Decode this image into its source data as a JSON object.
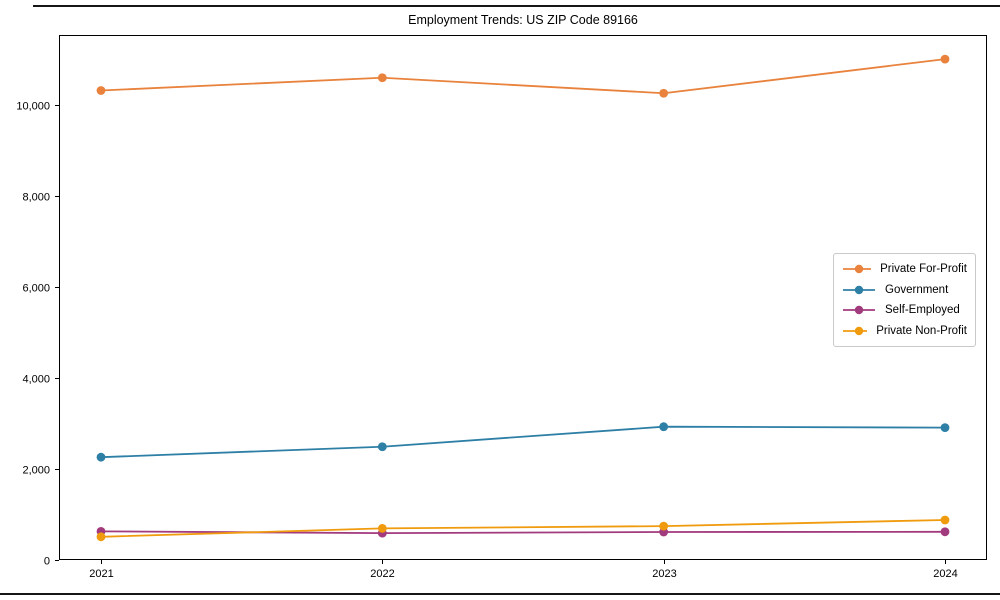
{
  "chart_data": {
    "type": "line",
    "title": "Employment Trends: US ZIP Code 89166",
    "categories": [
      "2021",
      "2022",
      "2023",
      "2024"
    ],
    "series": [
      {
        "name": "Private For-Profit",
        "color": "#E8823C",
        "values": [
          10320,
          10600,
          10260,
          11010
        ]
      },
      {
        "name": "Government",
        "color": "#2E7FA6",
        "values": [
          2260,
          2490,
          2930,
          2910
        ]
      },
      {
        "name": "Self-Employed",
        "color": "#A23A7E",
        "values": [
          630,
          590,
          615,
          620
        ]
      },
      {
        "name": "Private Non-Profit",
        "color": "#F09B0E",
        "values": [
          510,
          695,
          745,
          880
        ]
      }
    ],
    "xlabel": "",
    "ylabel": "",
    "ylim": [
      0,
      11540
    ],
    "y_ticks": [
      0,
      2000,
      4000,
      6000,
      8000,
      10000
    ],
    "y_tick_labels": [
      "0",
      "2,000",
      "4,000",
      "6,000",
      "8,000",
      "10,000"
    ],
    "grid": false,
    "legend_position": "center-right",
    "axis_color": "#000000"
  }
}
